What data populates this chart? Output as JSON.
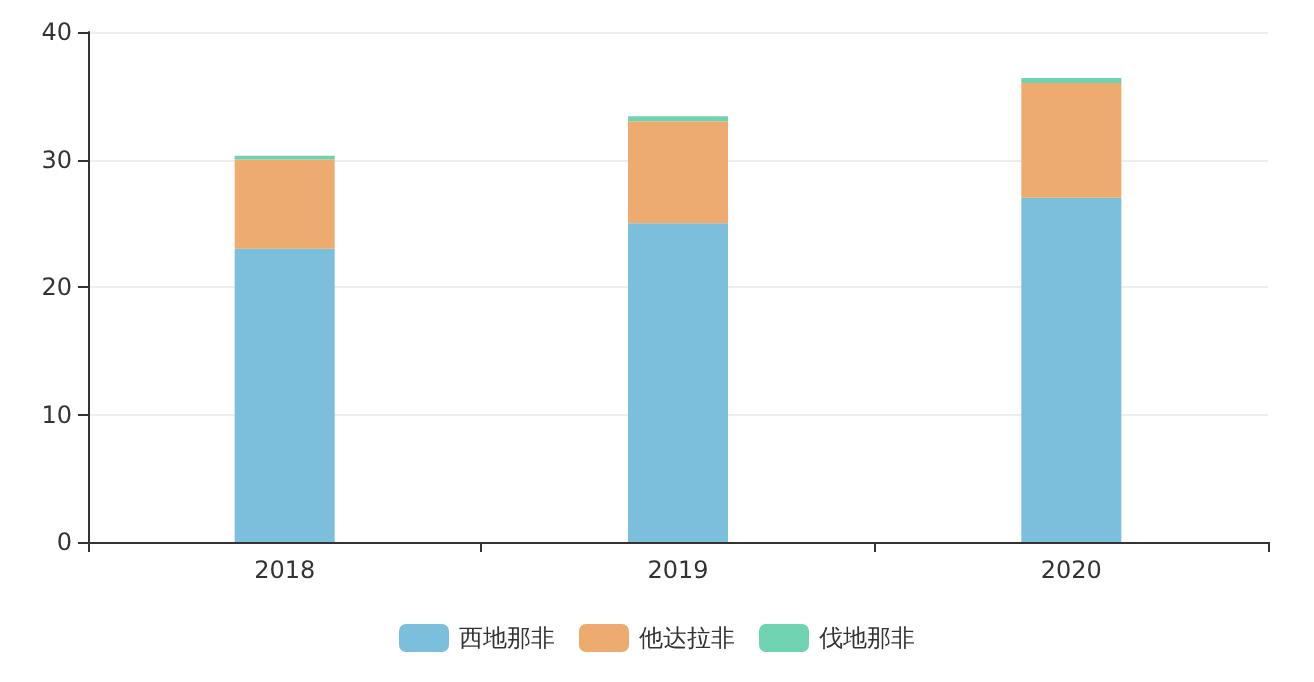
{
  "chart_data": {
    "type": "bar",
    "stacked": true,
    "categories": [
      "2018",
      "2019",
      "2020"
    ],
    "series": [
      {
        "name": "西地那非",
        "color": "#7cbfdd",
        "values": [
          23,
          25,
          27
        ]
      },
      {
        "name": "他达拉非",
        "color": "#eeab70",
        "values": [
          7,
          8,
          9
        ]
      },
      {
        "name": "伐地那非",
        "color": "#6fd3b1",
        "values": [
          0.3,
          0.4,
          0.4
        ]
      }
    ],
    "ylim": [
      0,
      40
    ],
    "yticks": [
      0,
      10,
      20,
      30,
      40
    ],
    "grid": "y",
    "legend": "bottom"
  }
}
